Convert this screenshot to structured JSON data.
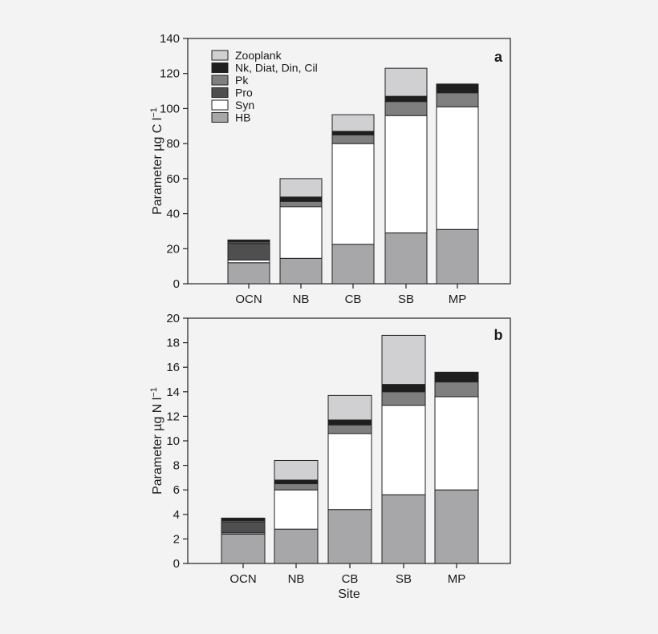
{
  "legend": [
    {
      "key": "zoo",
      "label": "Zooplank",
      "color": "#d0d0d2"
    },
    {
      "key": "nk",
      "label": "Nk, Diat, Din, Cil",
      "color": "#1e1e1e"
    },
    {
      "key": "pk",
      "label": "Pk",
      "color": "#7f7f7f"
    },
    {
      "key": "pro",
      "label": "Pro",
      "color": "#4f4f4f"
    },
    {
      "key": "syn",
      "label": "Syn",
      "color": "#ffffff"
    },
    {
      "key": "hb",
      "label": "HB",
      "color": "#a7a7a9"
    }
  ],
  "stack_order": [
    "hb",
    "syn",
    "pro",
    "pk",
    "nk",
    "zoo"
  ],
  "chart_data": [
    {
      "type": "bar",
      "stacked": true,
      "panel_label": "a",
      "ylabel_main": "Parameter µg C l",
      "ylabel_sup": "−1",
      "xlabel": "",
      "ylim": [
        0,
        140
      ],
      "yticks": [
        0,
        20,
        40,
        60,
        80,
        100,
        120,
        140
      ],
      "categories": [
        "OCN",
        "NB",
        "CB",
        "SB",
        "MP"
      ],
      "series": [
        {
          "name": "HB",
          "key": "hb",
          "values": [
            12,
            14.5,
            22.5,
            29,
            31
          ]
        },
        {
          "name": "Syn",
          "key": "syn",
          "values": [
            1.5,
            29.5,
            57.5,
            67,
            70
          ]
        },
        {
          "name": "Pro",
          "key": "pro",
          "values": [
            9.5,
            0,
            0,
            0,
            0
          ]
        },
        {
          "name": "Pk",
          "key": "pk",
          "values": [
            0.8,
            3,
            5,
            8,
            8
          ]
        },
        {
          "name": "Nk, Diat, Din, Cil",
          "key": "nk",
          "values": [
            1.2,
            2.5,
            2,
            3,
            5
          ]
        },
        {
          "name": "Zooplank",
          "key": "zoo",
          "values": [
            0,
            10.5,
            9.5,
            16,
            0
          ]
        }
      ]
    },
    {
      "type": "bar",
      "stacked": true,
      "panel_label": "b",
      "ylabel_main": "Parameter µg N l",
      "ylabel_sup": "−1",
      "xlabel": "Site",
      "ylim": [
        0,
        20
      ],
      "yticks": [
        0,
        2,
        4,
        6,
        8,
        10,
        12,
        14,
        16,
        18,
        20
      ],
      "categories": [
        "OCN",
        "NB",
        "CB",
        "SB",
        "MP"
      ],
      "series": [
        {
          "name": "HB",
          "key": "hb",
          "values": [
            2.4,
            2.8,
            4.4,
            5.6,
            6
          ]
        },
        {
          "name": "Syn",
          "key": "syn",
          "values": [
            0.1,
            3.2,
            6.2,
            7.3,
            7.6
          ]
        },
        {
          "name": "Pro",
          "key": "pro",
          "values": [
            0.9,
            0,
            0,
            0,
            0
          ]
        },
        {
          "name": "Pk",
          "key": "pk",
          "values": [
            0.1,
            0.5,
            0.7,
            1.1,
            1.2
          ]
        },
        {
          "name": "Nk, Diat, Din, Cil",
          "key": "nk",
          "values": [
            0.2,
            0.3,
            0.4,
            0.6,
            0.8
          ]
        },
        {
          "name": "Zooplank",
          "key": "zoo",
          "values": [
            0,
            1.6,
            2,
            4,
            0
          ]
        }
      ]
    }
  ]
}
